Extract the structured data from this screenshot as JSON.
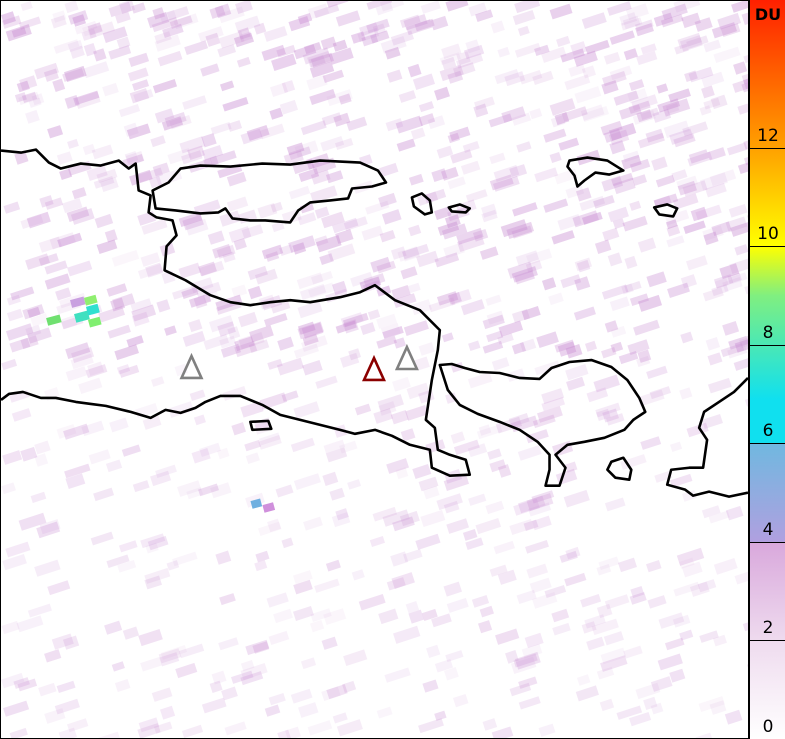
{
  "colorbar": {
    "unit": "DU",
    "ticks": [
      "0",
      "2",
      "4",
      "6",
      "8",
      "10",
      "12"
    ],
    "range": [
      0,
      15
    ],
    "colors": [
      "#ffffff",
      "#efdcef",
      "#d9a8dc",
      "#a8a8e0",
      "#10e0ef",
      "#80ef80",
      "#ffff00",
      "#ffa000",
      "#ff2000"
    ]
  },
  "markers": [
    {
      "type": "volcano-triangle",
      "color": "#808080"
    },
    {
      "type": "volcano-triangle",
      "color": "#8b0000"
    },
    {
      "type": "volcano-triangle",
      "color": "#808080"
    }
  ]
}
